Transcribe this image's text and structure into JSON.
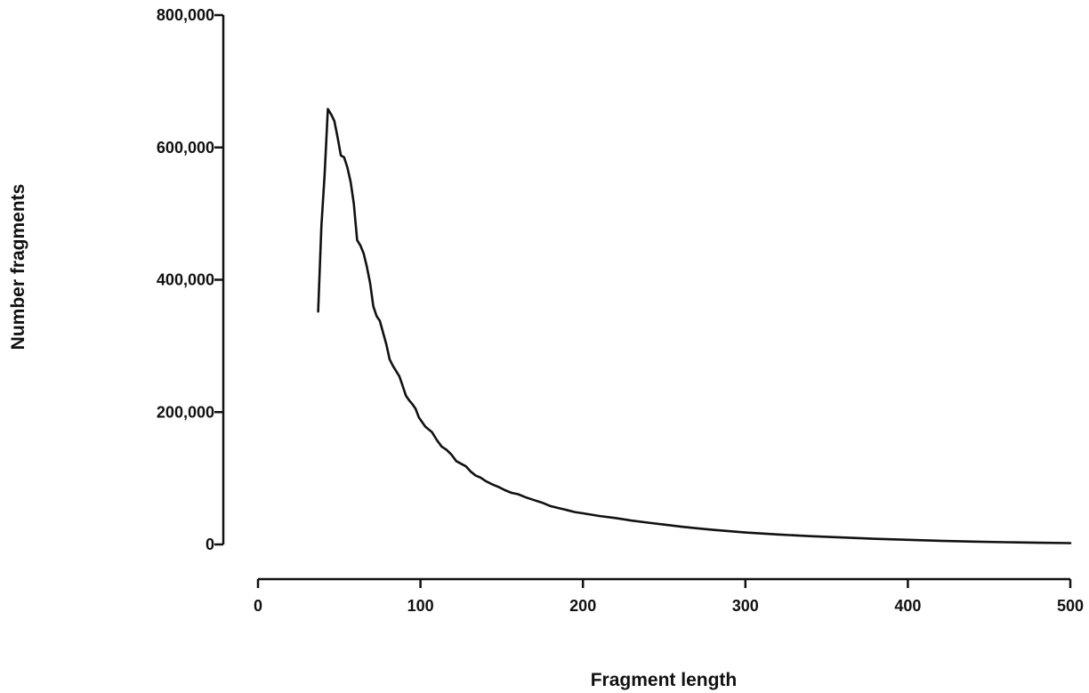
{
  "chart_data": {
    "type": "line",
    "title": "",
    "xlabel": "Fragment length",
    "ylabel": "Number fragments",
    "xlim": [
      0,
      500
    ],
    "ylim": [
      0,
      800000
    ],
    "x_ticks": [
      0,
      100,
      200,
      300,
      400,
      500
    ],
    "y_ticks": [
      0,
      200000,
      400000,
      600000,
      800000
    ],
    "x_tick_labels": [
      "0",
      "100",
      "200",
      "300",
      "400",
      "500"
    ],
    "y_tick_labels": [
      "0",
      "200,000",
      "400,000",
      "600,000",
      "800,000"
    ],
    "grid": false,
    "legend": "none",
    "series": [
      {
        "x": [
          37,
          39,
          41,
          43,
          45,
          47,
          49,
          51,
          53,
          55,
          57,
          59,
          61,
          63,
          65,
          67,
          69,
          71,
          73,
          75,
          77,
          79,
          81,
          83,
          85,
          87,
          89,
          91,
          93,
          95,
          97,
          99,
          101,
          103,
          105,
          107,
          110,
          113,
          116,
          119,
          122,
          125,
          128,
          131,
          134,
          137,
          140,
          144,
          148,
          152,
          156,
          160,
          165,
          170,
          175,
          180,
          185,
          190,
          195,
          200,
          210,
          220,
          230,
          240,
          250,
          260,
          270,
          280,
          290,
          300,
          320,
          340,
          360,
          380,
          400,
          420,
          440,
          460,
          480,
          500
        ],
        "values": [
          352000,
          480000,
          560000,
          658000,
          650000,
          640000,
          615000,
          588000,
          585000,
          570000,
          548000,
          515000,
          460000,
          452000,
          440000,
          420000,
          395000,
          360000,
          345000,
          338000,
          320000,
          302000,
          280000,
          270000,
          262000,
          254000,
          240000,
          225000,
          218000,
          212000,
          205000,
          192000,
          185000,
          178000,
          174000,
          170000,
          158000,
          148000,
          143000,
          136000,
          126000,
          122000,
          118000,
          110000,
          104000,
          101000,
          96000,
          91000,
          87000,
          82000,
          78000,
          76000,
          71000,
          67000,
          63000,
          58000,
          55000,
          52000,
          49000,
          47000,
          43000,
          40000,
          36000,
          33000,
          30000,
          27000,
          24500,
          22000,
          20000,
          18000,
          15000,
          12500,
          10500,
          8500,
          7000,
          5500,
          4300,
          3300,
          2600,
          2000
        ]
      }
    ]
  }
}
